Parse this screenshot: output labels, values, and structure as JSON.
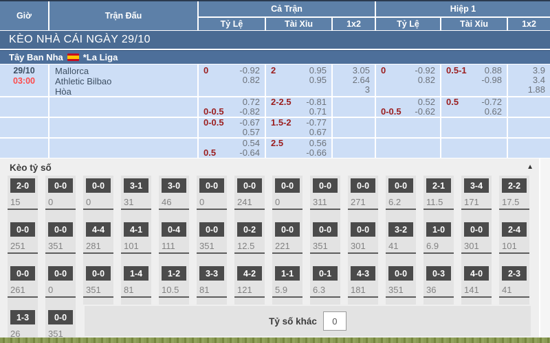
{
  "header": {
    "time_col": "Giờ",
    "match_col": "Trận Đấu",
    "full_match_group": "Cả Trận",
    "first_half_group": "Hiệp 1",
    "sub_handicap": "Tỷ Lệ",
    "sub_over_under": "Tài Xỉu",
    "sub_1x2": "1x2"
  },
  "title_bar": {
    "text": "KÈO NHÀ CÁI NGÀY 29/10"
  },
  "league_bar": {
    "country": "Tây Ban Nha",
    "flag_icon": "spain-flag",
    "league": "*La Liga"
  },
  "match": {
    "date": "29/10",
    "time": "03:00",
    "home": "Mallorca",
    "away": "Athletic Bilbao",
    "draw": "Hòa"
  },
  "odds": {
    "rows": [
      {
        "ft_hdp": {
          "label": "0",
          "v1": "-0.92",
          "v2": "0.82"
        },
        "ft_ou": {
          "label": "2",
          "v1": "0.95",
          "v2": "0.95"
        },
        "ft_1x2": [
          "3.05",
          "2.64",
          "3"
        ],
        "h1_hdp": {
          "label": "0",
          "v1": "-0.92",
          "v2": "0.82"
        },
        "h1_ou": {
          "label": "0.5-1",
          "v1": "0.88",
          "v2": "-0.98"
        },
        "h1_1x2": [
          "3.9",
          "3.4",
          "1.88"
        ]
      },
      {
        "ft_hdp": {
          "label": "0-0.5",
          "v1": "0.72",
          "v2": "-0.82"
        },
        "ft_ou": {
          "label": "2-2.5",
          "v1": "-0.81",
          "v2": "0.71"
        },
        "h1_hdp": {
          "label": "0-0.5",
          "v1": "0.52",
          "v2": "-0.62"
        },
        "h1_ou": {
          "label": "0.5",
          "v1": "-0.72",
          "v2": "0.62"
        }
      },
      {
        "ft_hdp": {
          "label": "0-0.5",
          "v1": "-0.67",
          "v2": "0.57"
        },
        "ft_ou": {
          "label": "1.5-2",
          "v1": "-0.77",
          "v2": "0.67"
        }
      },
      {
        "ft_hdp": {
          "label": "0.5",
          "v1": "0.54",
          "v2": "-0.64"
        },
        "ft_ou": {
          "label": "2.5",
          "v1": "0.56",
          "v2": "-0.66"
        }
      }
    ]
  },
  "scores": {
    "title": "Kèo tỷ số",
    "collapse_icon": "▲",
    "other_label": "Tỷ số khác",
    "other_value": "0",
    "rows": [
      [
        {
          "s": "2-0",
          "o": "15"
        },
        {
          "s": "0-0",
          "o": "0"
        },
        {
          "s": "0-0",
          "o": "0"
        },
        {
          "s": "3-1",
          "o": "31"
        },
        {
          "s": "3-0",
          "o": "46"
        },
        {
          "s": "0-0",
          "o": "0"
        },
        {
          "s": "0-0",
          "o": "241"
        },
        {
          "s": "0-0",
          "o": "0"
        },
        {
          "s": "0-0",
          "o": "311"
        },
        {
          "s": "0-0",
          "o": "271"
        },
        {
          "s": "0-0",
          "o": "6.2"
        },
        {
          "s": "2-1",
          "o": "11.5"
        },
        {
          "s": "3-4",
          "o": "171"
        },
        {
          "s": "2-2",
          "o": "17.5"
        }
      ],
      [
        {
          "s": "0-0",
          "o": "251"
        },
        {
          "s": "0-0",
          "o": "351"
        },
        {
          "s": "4-4",
          "o": "281"
        },
        {
          "s": "4-1",
          "o": "101"
        },
        {
          "s": "0-4",
          "o": "111"
        },
        {
          "s": "0-0",
          "o": "351"
        },
        {
          "s": "0-2",
          "o": "12.5"
        },
        {
          "s": "0-0",
          "o": "221"
        },
        {
          "s": "0-0",
          "o": "351"
        },
        {
          "s": "0-0",
          "o": "301"
        },
        {
          "s": "3-2",
          "o": "41"
        },
        {
          "s": "1-0",
          "o": "6.9"
        },
        {
          "s": "0-0",
          "o": "301"
        },
        {
          "s": "2-4",
          "o": "101"
        }
      ],
      [
        {
          "s": "0-0",
          "o": "261"
        },
        {
          "s": "0-0",
          "o": "0"
        },
        {
          "s": "0-0",
          "o": "351"
        },
        {
          "s": "1-4",
          "o": "81"
        },
        {
          "s": "1-2",
          "o": "10.5"
        },
        {
          "s": "3-3",
          "o": "81"
        },
        {
          "s": "4-2",
          "o": "121"
        },
        {
          "s": "1-1",
          "o": "5.9"
        },
        {
          "s": "0-1",
          "o": "6.3"
        },
        {
          "s": "4-3",
          "o": "181"
        },
        {
          "s": "0-0",
          "o": "351"
        },
        {
          "s": "0-3",
          "o": "36"
        },
        {
          "s": "4-0",
          "o": "141"
        },
        {
          "s": "2-3",
          "o": "41"
        }
      ],
      [
        {
          "s": "1-3",
          "o": "26"
        },
        {
          "s": "0-0",
          "o": "351"
        }
      ]
    ]
  },
  "colors": {
    "header_blue": "#5d80a8",
    "title_blue": "#4a6b93",
    "league_blue": "#4d6f9a",
    "cell_blue": "#cddef6",
    "label_red": "#9b1d1d",
    "time_red": "#fd4b4b",
    "score_button_gray": "#4b4b4b",
    "grass_green": "#8a9a55"
  }
}
